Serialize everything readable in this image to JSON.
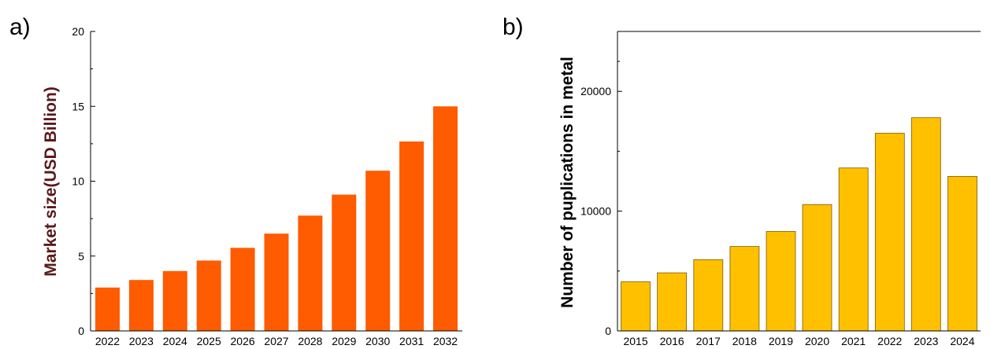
{
  "panels": [
    {
      "label": "a)"
    },
    {
      "label": "b)"
    }
  ],
  "colors": {
    "panel_a_bar": "#ff5b00",
    "panel_a_ylabel": "#5a1a1a",
    "panel_b_bar": "#ffc000",
    "panel_b_ylabel": "#000000"
  },
  "chart_data": [
    {
      "type": "bar",
      "categories": [
        "2022",
        "2023",
        "2024",
        "2025",
        "2026",
        "2027",
        "2028",
        "2029",
        "2030",
        "2031",
        "2032"
      ],
      "values": [
        2.9,
        3.4,
        4.0,
        4.7,
        5.55,
        6.5,
        7.7,
        9.1,
        10.7,
        12.65,
        15.0
      ],
      "title": "",
      "xlabel": "",
      "ylabel": "Market size(USD Billion)",
      "ylim": [
        0,
        20
      ],
      "yticks": [
        0,
        5,
        10,
        15,
        20
      ],
      "grid": false
    },
    {
      "type": "bar",
      "categories": [
        "2015",
        "2016",
        "2017",
        "2018",
        "2019",
        "2020",
        "2021",
        "2022",
        "2023",
        "2024"
      ],
      "values": [
        4100,
        4850,
        5950,
        7050,
        8300,
        10550,
        13600,
        16500,
        17800,
        12900
      ],
      "title": "",
      "xlabel": "",
      "ylabel": "Number of puplications in metal",
      "ylim": [
        0,
        25000
      ],
      "yticks": [
        0,
        10000,
        20000
      ],
      "grid": false
    }
  ]
}
